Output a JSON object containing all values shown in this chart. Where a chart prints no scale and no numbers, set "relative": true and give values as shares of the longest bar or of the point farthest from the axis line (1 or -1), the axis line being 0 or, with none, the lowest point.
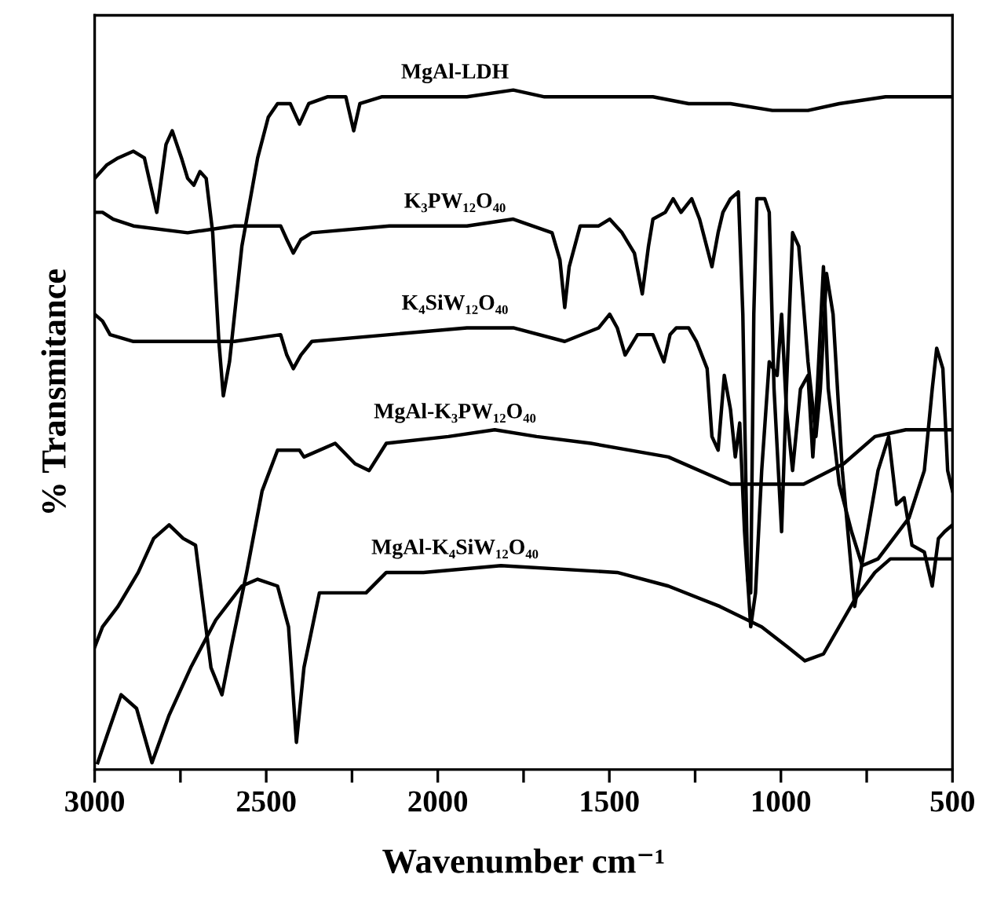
{
  "chart_data": {
    "type": "line",
    "relative": true,
    "xlabel": "Wavenumber cm⁻¹",
    "ylabel": "% Transmitance",
    "xlim": [
      3000,
      500
    ],
    "xticks": [
      3000,
      {
        "value": 2750,
        "label": null
      },
      2500,
      {
        "value": 2250,
        "label": null
      },
      2000,
      {
        "value": 1750,
        "label": null
      },
      1500,
      {
        "value": 1250,
        "label": null
      },
      1000,
      {
        "value": 750,
        "label": null
      },
      500
    ],
    "tick_labels": "x",
    "grid": false,
    "legend": false,
    "marker": "none",
    "line_style": "solid",
    "series": [
      {
        "name": "MgAl-LDH",
        "color": "#000000",
        "x": [
          3000,
          2964,
          2932,
          2887,
          2855,
          2819,
          2792,
          2774,
          2747,
          2729,
          2711,
          2693,
          2675,
          2656,
          2638,
          2625,
          2607,
          2571,
          2525,
          2494,
          2467,
          2430,
          2403,
          2376,
          2322,
          2268,
          2245,
          2227,
          2164,
          1915,
          1780,
          1689,
          1373,
          1269,
          1147,
          1025,
          921,
          830,
          695,
          500
        ],
        "values": [
          0.87,
          0.89,
          0.9,
          0.91,
          0.9,
          0.82,
          0.92,
          0.94,
          0.9,
          0.87,
          0.86,
          0.88,
          0.87,
          0.79,
          0.63,
          0.55,
          0.6,
          0.77,
          0.9,
          0.96,
          0.98,
          0.98,
          0.95,
          0.98,
          0.99,
          0.99,
          0.94,
          0.98,
          0.99,
          0.99,
          1.0,
          0.99,
          0.99,
          0.98,
          0.98,
          0.97,
          0.97,
          0.98,
          0.99,
          0.99
        ]
      },
      {
        "name": "K₃PW₁₂O₄₀",
        "color": "#000000",
        "x": [
          3000,
          2977,
          2946,
          2887,
          2729,
          2593,
          2458,
          2440,
          2421,
          2399,
          2367,
          2141,
          1915,
          1780,
          1667,
          1644,
          1630,
          1617,
          1585,
          1531,
          1499,
          1463,
          1427,
          1404,
          1386,
          1373,
          1337,
          1314,
          1291,
          1260,
          1237,
          1201,
          1183,
          1169,
          1147,
          1124,
          1111,
          1097,
          1088,
          1079,
          1070,
          1047,
          1034,
          1020,
          998,
          984,
          966,
          948,
          921,
          898,
          885,
          867,
          848,
          821,
          785,
          758,
          717,
          686,
          663,
          641,
          618,
          582,
          559,
          541,
          523,
          500
        ],
        "values": [
          0.82,
          0.82,
          0.81,
          0.8,
          0.79,
          0.8,
          0.8,
          0.78,
          0.76,
          0.78,
          0.79,
          0.8,
          0.8,
          0.81,
          0.79,
          0.75,
          0.68,
          0.74,
          0.8,
          0.8,
          0.81,
          0.79,
          0.76,
          0.7,
          0.77,
          0.81,
          0.82,
          0.84,
          0.82,
          0.84,
          0.81,
          0.74,
          0.79,
          0.82,
          0.84,
          0.85,
          0.67,
          0.28,
          0.26,
          0.67,
          0.84,
          0.84,
          0.82,
          0.56,
          0.35,
          0.56,
          0.79,
          0.77,
          0.6,
          0.49,
          0.56,
          0.73,
          0.67,
          0.44,
          0.24,
          0.32,
          0.44,
          0.49,
          0.39,
          0.4,
          0.33,
          0.32,
          0.27,
          0.34,
          0.35,
          0.36
        ]
      },
      {
        "name": "K₄SiW₁₂O₄₀",
        "color": "#000000",
        "x": [
          3000,
          2977,
          2955,
          2887,
          2593,
          2458,
          2440,
          2421,
          2399,
          2367,
          2141,
          1915,
          1780,
          1630,
          1531,
          1499,
          1477,
          1454,
          1418,
          1373,
          1341,
          1323,
          1305,
          1269,
          1246,
          1215,
          1201,
          1183,
          1165,
          1147,
          1133,
          1120,
          1106,
          1088,
          1074,
          1056,
          1034,
          1011,
          998,
          984,
          966,
          943,
          921,
          907,
          894,
          876,
          862,
          830,
          794,
          763,
          717,
          672,
          627,
          582,
          559,
          546,
          528,
          514,
          500
        ],
        "values": [
          0.67,
          0.66,
          0.64,
          0.63,
          0.63,
          0.64,
          0.61,
          0.59,
          0.61,
          0.63,
          0.64,
          0.65,
          0.65,
          0.63,
          0.65,
          0.67,
          0.65,
          0.61,
          0.64,
          0.64,
          0.6,
          0.64,
          0.65,
          0.65,
          0.63,
          0.59,
          0.49,
          0.47,
          0.58,
          0.53,
          0.46,
          0.51,
          0.35,
          0.21,
          0.26,
          0.44,
          0.6,
          0.58,
          0.67,
          0.53,
          0.44,
          0.56,
          0.58,
          0.46,
          0.56,
          0.74,
          0.56,
          0.42,
          0.35,
          0.3,
          0.31,
          0.34,
          0.37,
          0.44,
          0.56,
          0.62,
          0.59,
          0.44,
          0.41
        ]
      },
      {
        "name": "MgAl-K₃PW₁₂O₄₀",
        "color": "#000000",
        "x": [
          3000,
          2977,
          2932,
          2873,
          2828,
          2783,
          2742,
          2706,
          2661,
          2629,
          2602,
          2557,
          2512,
          2467,
          2403,
          2390,
          2299,
          2241,
          2200,
          2150,
          1969,
          1834,
          1712,
          1554,
          1328,
          1147,
          1025,
          934,
          817,
          726,
          636,
          500
        ],
        "values": [
          0.18,
          0.21,
          0.24,
          0.29,
          0.34,
          0.36,
          0.34,
          0.33,
          0.15,
          0.11,
          0.18,
          0.29,
          0.41,
          0.47,
          0.47,
          0.46,
          0.48,
          0.45,
          0.44,
          0.48,
          0.49,
          0.5,
          0.49,
          0.48,
          0.46,
          0.42,
          0.42,
          0.42,
          0.45,
          0.49,
          0.5,
          0.5
        ]
      },
      {
        "name": "MgAl-K₄SiW₁₂O₄₀",
        "color": "#000000",
        "x": [
          2991,
          2964,
          2923,
          2878,
          2833,
          2783,
          2720,
          2647,
          2571,
          2525,
          2467,
          2435,
          2412,
          2390,
          2345,
          2209,
          2150,
          2042,
          1816,
          1477,
          1328,
          1178,
          1056,
          980,
          930,
          876,
          785,
          726,
          681,
          500
        ],
        "values": [
          0.01,
          0.05,
          0.11,
          0.09,
          0.01,
          0.08,
          0.15,
          0.22,
          0.27,
          0.28,
          0.27,
          0.21,
          0.04,
          0.15,
          0.26,
          0.26,
          0.29,
          0.29,
          0.3,
          0.29,
          0.27,
          0.24,
          0.21,
          0.18,
          0.16,
          0.17,
          0.25,
          0.29,
          0.31,
          0.31
        ]
      }
    ]
  }
}
